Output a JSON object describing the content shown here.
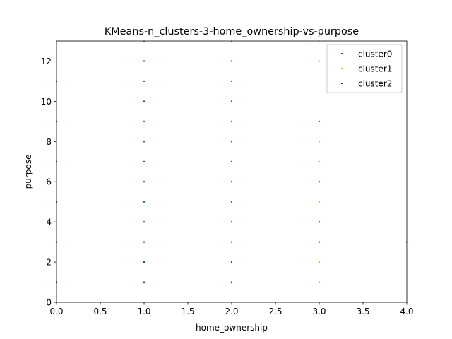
{
  "chart_data": {
    "type": "scatter",
    "title": "KMeans-n_clusters-3-home_ownership-vs-purpose",
    "xlabel": "home_ownership",
    "ylabel": "purpose",
    "xlim": [
      0,
      4
    ],
    "ylim": [
      0,
      13
    ],
    "xticks": [
      0,
      0.5,
      1,
      1.5,
      2,
      2.5,
      3,
      3.5,
      4
    ],
    "xtick_labels": [
      "0.0",
      "0.5",
      "1.0",
      "1.5",
      "2.0",
      "2.5",
      "3.0",
      "3.5",
      "4.0"
    ],
    "yticks": [
      0,
      2,
      4,
      6,
      8,
      10,
      12
    ],
    "ytick_labels": [
      "0",
      "2",
      "4",
      "6",
      "8",
      "10",
      "12"
    ],
    "grid": false,
    "legend_position": "top-right",
    "series": [
      {
        "name": "cluster0",
        "color": "#ff0000",
        "points": [
          [
            0,
            1
          ],
          [
            0,
            3
          ],
          [
            0,
            5
          ],
          [
            0,
            7
          ],
          [
            0,
            9
          ],
          [
            0,
            11
          ],
          [
            3,
            6
          ],
          [
            3,
            9
          ]
        ]
      },
      {
        "name": "cluster1",
        "color": "#ffa500",
        "points": [
          [
            3,
            1
          ],
          [
            3,
            2
          ],
          [
            3,
            3
          ],
          [
            3,
            4
          ],
          [
            3,
            5
          ],
          [
            3,
            7
          ],
          [
            3,
            8
          ],
          [
            3,
            12
          ],
          [
            3,
            13
          ]
        ]
      },
      {
        "name": "cluster2",
        "color": "#008000",
        "points": [
          [
            1,
            1
          ],
          [
            1,
            2
          ],
          [
            1,
            3
          ],
          [
            1,
            4
          ],
          [
            1,
            5
          ],
          [
            1,
            6
          ],
          [
            1,
            7
          ],
          [
            1,
            8
          ],
          [
            1,
            9
          ],
          [
            1,
            10
          ],
          [
            1,
            11
          ],
          [
            1,
            12
          ],
          [
            1,
            13
          ],
          [
            2,
            1
          ],
          [
            2,
            2
          ],
          [
            2,
            3
          ],
          [
            2,
            4
          ],
          [
            2,
            5
          ],
          [
            2,
            6
          ],
          [
            2,
            7
          ],
          [
            2,
            8
          ],
          [
            2,
            9
          ],
          [
            2,
            10
          ],
          [
            2,
            11
          ],
          [
            2,
            12
          ],
          [
            2,
            13
          ],
          [
            3,
            3
          ],
          [
            3,
            4
          ],
          [
            4,
            3
          ]
        ]
      }
    ]
  }
}
